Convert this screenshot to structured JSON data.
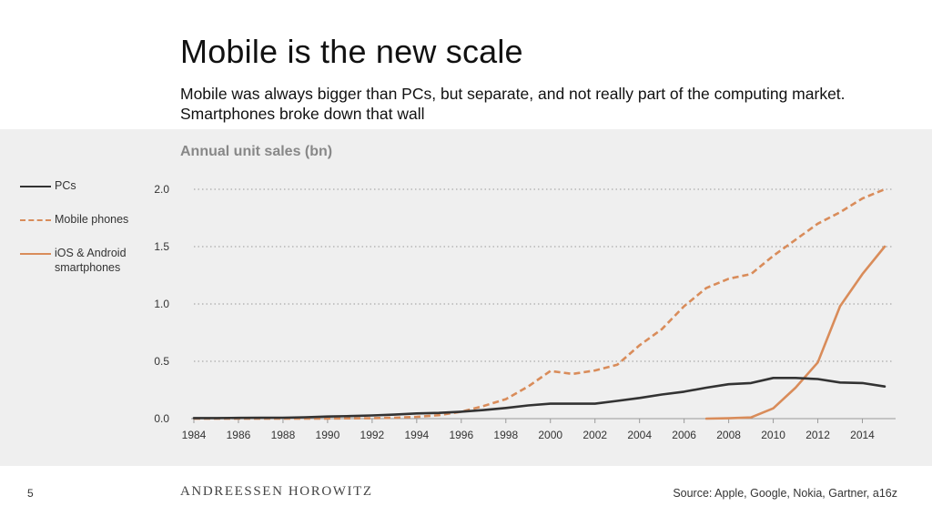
{
  "slide": {
    "title": "Mobile is the new scale",
    "subtitle": "Mobile was always bigger than PCs, but separate, and not really part of the computing market. Smartphones broke down that wall",
    "page_number": "5",
    "brand": "ANDREESSEN HOROWITZ",
    "source": "Source: Apple, Google, Nokia, Gartner, a16z"
  },
  "chart_data": {
    "type": "line",
    "title": "Annual unit sales (bn)",
    "xlabel": "",
    "ylabel": "",
    "xlim": [
      1984,
      2015
    ],
    "ylim": [
      0,
      2.0
    ],
    "x_ticks": [
      "1984",
      "1986",
      "1988",
      "1990",
      "1992",
      "1994",
      "1996",
      "1998",
      "2000",
      "2002",
      "2004",
      "2006",
      "2008",
      "2010",
      "2012",
      "2014"
    ],
    "y_ticks": [
      "0.0",
      "0.5",
      "1.0",
      "1.5",
      "2.0"
    ],
    "grid": "horizontal dotted",
    "legend_position": "left",
    "series": [
      {
        "name": "PCs",
        "color": "#333333",
        "style": "solid",
        "x": [
          1984,
          1985,
          1986,
          1987,
          1988,
          1989,
          1990,
          1991,
          1992,
          1993,
          1994,
          1995,
          1996,
          1997,
          1998,
          1999,
          2000,
          2001,
          2002,
          2003,
          2004,
          2005,
          2006,
          2007,
          2008,
          2009,
          2010,
          2011,
          2012,
          2013,
          2014,
          2015
        ],
        "values": [
          0.005,
          0.005,
          0.006,
          0.007,
          0.008,
          0.012,
          0.018,
          0.022,
          0.028,
          0.035,
          0.045,
          0.05,
          0.06,
          0.075,
          0.093,
          0.115,
          0.13,
          0.13,
          0.13,
          0.155,
          0.18,
          0.21,
          0.235,
          0.27,
          0.3,
          0.31,
          0.355,
          0.355,
          0.345,
          0.315,
          0.31,
          0.28
        ]
      },
      {
        "name": "Mobile phones",
        "color": "#d98c5a",
        "style": "dashed",
        "x": [
          1984,
          1986,
          1988,
          1990,
          1991,
          1992,
          1993,
          1994,
          1995,
          1996,
          1997,
          1998,
          1999,
          2000,
          2001,
          2002,
          2003,
          2004,
          2005,
          2006,
          2007,
          2008,
          2009,
          2010,
          2011,
          2012,
          2013,
          2014,
          2015
        ],
        "values": [
          0.0,
          0.0,
          0.0,
          0.001,
          0.002,
          0.004,
          0.008,
          0.015,
          0.03,
          0.06,
          0.11,
          0.17,
          0.28,
          0.415,
          0.39,
          0.42,
          0.47,
          0.64,
          0.78,
          0.98,
          1.14,
          1.22,
          1.26,
          1.42,
          1.56,
          1.7,
          1.8,
          1.92,
          2.0
        ]
      },
      {
        "name": "iOS & Android smartphones",
        "color": "#d98c5a",
        "style": "solid",
        "x": [
          2007,
          2008,
          2009,
          2010,
          2011,
          2012,
          2013,
          2014,
          2015
        ],
        "values": [
          0.0,
          0.003,
          0.01,
          0.09,
          0.27,
          0.49,
          0.98,
          1.26,
          1.5
        ]
      }
    ]
  }
}
